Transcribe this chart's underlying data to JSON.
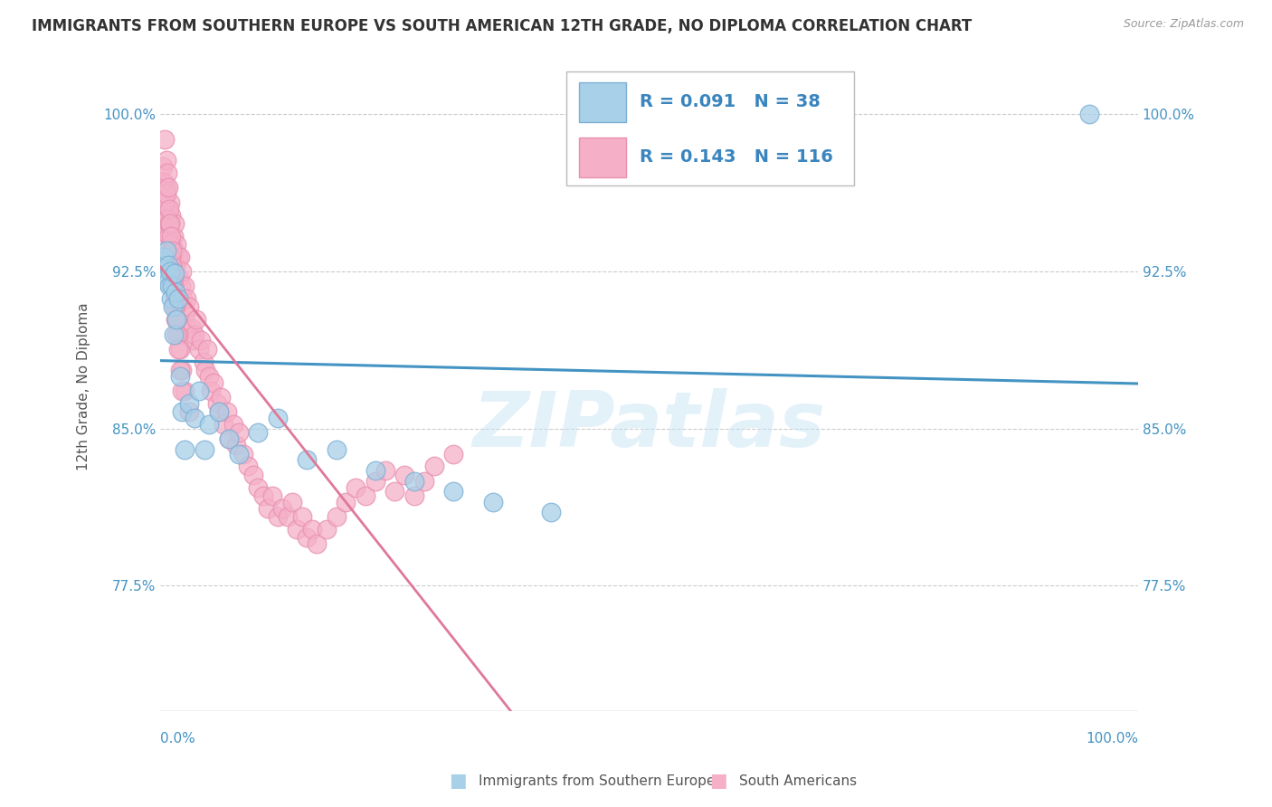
{
  "title": "IMMIGRANTS FROM SOUTHERN EUROPE VS SOUTH AMERICAN 12TH GRADE, NO DIPLOMA CORRELATION CHART",
  "source": "Source: ZipAtlas.com",
  "ylabel": "12th Grade, No Diploma",
  "ytick_labels": [
    "77.5%",
    "85.0%",
    "92.5%",
    "100.0%"
  ],
  "ytick_values": [
    0.775,
    0.85,
    0.925,
    1.0
  ],
  "xlim": [
    0.0,
    1.0
  ],
  "ylim": [
    0.715,
    1.025
  ],
  "legend_blue_r": "R = 0.091",
  "legend_blue_n": "N = 38",
  "legend_pink_r": "R = 0.143",
  "legend_pink_n": "N = 116",
  "legend_blue_label": "Immigrants from Southern Europe",
  "legend_pink_label": "South Americans",
  "blue_color": "#A8D0E8",
  "pink_color": "#F5B0C8",
  "blue_edge_color": "#7BAFD4",
  "pink_edge_color": "#E890B0",
  "blue_line_color": "#4393C3",
  "pink_line_color": "#E07898",
  "watermark": "ZIPatlas",
  "blue_scatter_x": [
    0.002,
    0.003,
    0.004,
    0.005,
    0.006,
    0.007,
    0.008,
    0.009,
    0.01,
    0.011,
    0.012,
    0.013,
    0.014,
    0.015,
    0.016,
    0.017,
    0.018,
    0.02,
    0.022,
    0.025,
    0.03,
    0.035,
    0.04,
    0.045,
    0.05,
    0.06,
    0.07,
    0.08,
    0.1,
    0.12,
    0.15,
    0.18,
    0.22,
    0.26,
    0.3,
    0.34,
    0.4,
    0.95
  ],
  "blue_scatter_y": [
    0.93,
    0.928,
    0.932,
    0.922,
    0.935,
    0.92,
    0.928,
    0.918,
    0.925,
    0.912,
    0.918,
    0.908,
    0.895,
    0.924,
    0.915,
    0.902,
    0.912,
    0.875,
    0.858,
    0.84,
    0.862,
    0.855,
    0.868,
    0.84,
    0.852,
    0.858,
    0.845,
    0.838,
    0.848,
    0.855,
    0.835,
    0.84,
    0.83,
    0.825,
    0.82,
    0.815,
    0.81,
    1.0
  ],
  "pink_scatter_x": [
    0.002,
    0.003,
    0.004,
    0.005,
    0.006,
    0.007,
    0.007,
    0.008,
    0.009,
    0.01,
    0.01,
    0.011,
    0.012,
    0.013,
    0.014,
    0.015,
    0.015,
    0.016,
    0.017,
    0.018,
    0.019,
    0.02,
    0.021,
    0.022,
    0.023,
    0.025,
    0.026,
    0.027,
    0.028,
    0.03,
    0.032,
    0.033,
    0.035,
    0.037,
    0.04,
    0.042,
    0.044,
    0.046,
    0.048,
    0.05,
    0.052,
    0.055,
    0.058,
    0.06,
    0.062,
    0.065,
    0.068,
    0.07,
    0.075,
    0.078,
    0.08,
    0.085,
    0.09,
    0.095,
    0.1,
    0.105,
    0.11,
    0.115,
    0.12,
    0.125,
    0.13,
    0.135,
    0.14,
    0.145,
    0.15,
    0.155,
    0.16,
    0.17,
    0.18,
    0.19,
    0.2,
    0.21,
    0.22,
    0.23,
    0.24,
    0.25,
    0.26,
    0.27,
    0.28,
    0.3,
    0.003,
    0.004,
    0.005,
    0.006,
    0.007,
    0.008,
    0.009,
    0.01,
    0.011,
    0.012,
    0.013,
    0.014,
    0.015,
    0.016,
    0.017,
    0.018,
    0.02,
    0.022,
    0.025,
    0.03,
    0.005,
    0.006,
    0.007,
    0.008,
    0.009,
    0.01,
    0.011,
    0.012,
    0.013,
    0.014,
    0.015,
    0.016,
    0.017,
    0.018,
    0.02,
    0.022
  ],
  "pink_scatter_y": [
    0.962,
    0.968,
    0.958,
    0.952,
    0.965,
    0.955,
    0.945,
    0.948,
    0.942,
    0.958,
    0.948,
    0.952,
    0.938,
    0.932,
    0.942,
    0.935,
    0.948,
    0.928,
    0.938,
    0.932,
    0.922,
    0.932,
    0.918,
    0.925,
    0.912,
    0.918,
    0.905,
    0.912,
    0.898,
    0.908,
    0.898,
    0.892,
    0.895,
    0.902,
    0.888,
    0.892,
    0.882,
    0.878,
    0.888,
    0.875,
    0.868,
    0.872,
    0.862,
    0.858,
    0.865,
    0.852,
    0.858,
    0.845,
    0.852,
    0.842,
    0.848,
    0.838,
    0.832,
    0.828,
    0.822,
    0.818,
    0.812,
    0.818,
    0.808,
    0.812,
    0.808,
    0.815,
    0.802,
    0.808,
    0.798,
    0.802,
    0.795,
    0.802,
    0.808,
    0.815,
    0.822,
    0.818,
    0.825,
    0.83,
    0.82,
    0.828,
    0.818,
    0.825,
    0.832,
    0.838,
    0.975,
    0.968,
    0.958,
    0.962,
    0.95,
    0.942,
    0.948,
    0.938,
    0.932,
    0.928,
    0.918,
    0.922,
    0.912,
    0.908,
    0.902,
    0.895,
    0.888,
    0.878,
    0.868,
    0.858,
    0.988,
    0.978,
    0.972,
    0.965,
    0.955,
    0.948,
    0.942,
    0.935,
    0.925,
    0.918,
    0.908,
    0.902,
    0.895,
    0.888,
    0.878,
    0.868
  ]
}
